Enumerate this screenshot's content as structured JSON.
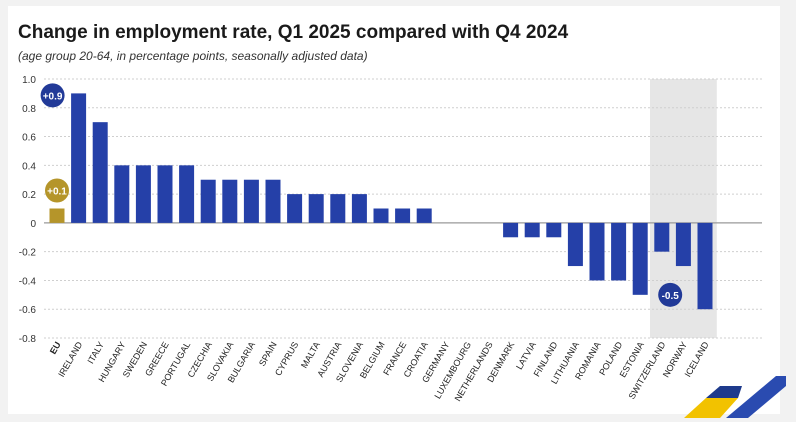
{
  "chart_data": {
    "type": "bar",
    "title": "Change in employment rate, Q1 2025 compared with Q4 2024",
    "subtitle": "(age group 20-64, in percentage points, seasonally adjusted data)",
    "xlabel": "",
    "ylabel": "",
    "ylim": [
      -0.8,
      1.0
    ],
    "yticks": [
      "1.0",
      "0.8",
      "0.6",
      "0.4",
      "0.2",
      "0",
      "-0.2",
      "-0.4",
      "-0.6",
      "-0.8"
    ],
    "ytick_values": [
      1.0,
      0.8,
      0.6,
      0.4,
      0.2,
      0,
      -0.2,
      -0.4,
      -0.6,
      -0.8
    ],
    "categories": [
      "EU",
      "IRELAND",
      "ITALY",
      "HUNGARY",
      "SWEDEN",
      "GREECE",
      "PORTUGAL",
      "CZECHIA",
      "SLOVAKIA",
      "BULGARIA",
      "SPAIN",
      "CYPRUS",
      "MALTA",
      "AUSTRIA",
      "SLOVENIA",
      "BELGIUM",
      "FRANCE",
      "CROATIA",
      "GERMANY",
      "LUXEMBOURG",
      "NETHERLANDS",
      "DENMARK",
      "LATVIA",
      "FINLAND",
      "LITHUANIA",
      "ROMANIA",
      "POLAND",
      "ESTONIA",
      "SWITZERLAND",
      "NORWAY",
      "ICELAND"
    ],
    "values": [
      0.1,
      0.9,
      0.7,
      0.4,
      0.4,
      0.4,
      0.4,
      0.3,
      0.3,
      0.3,
      0.3,
      0.2,
      0.2,
      0.2,
      0.2,
      0.1,
      0.1,
      0.1,
      0,
      0,
      0,
      -0.1,
      -0.1,
      -0.1,
      -0.3,
      -0.4,
      -0.4,
      -0.5,
      -0.2,
      -0.3,
      -0.6
    ],
    "groups": [
      "eu",
      "member",
      "member",
      "member",
      "member",
      "member",
      "member",
      "member",
      "member",
      "member",
      "member",
      "member",
      "member",
      "member",
      "member",
      "member",
      "member",
      "member",
      "member",
      "member",
      "member",
      "member",
      "member",
      "member",
      "member",
      "member",
      "member",
      "member",
      "efta",
      "efta",
      "efta"
    ],
    "annotations": [
      {
        "category": "EU",
        "label": "+0.1",
        "color": "#b5952a"
      },
      {
        "category": "IRELAND",
        "label": "+0.9",
        "color": "#223a98"
      },
      {
        "category": "ESTONIA",
        "label": "-0.5",
        "color": "#223a98"
      }
    ],
    "colors": {
      "eu": "#b5952a",
      "member": "#2540a8",
      "efta": "#2540a8",
      "efta_background": "#e6e6e6",
      "grid": "#cfcfcf",
      "zero_line": "#9a9a9a"
    },
    "grid": true
  }
}
